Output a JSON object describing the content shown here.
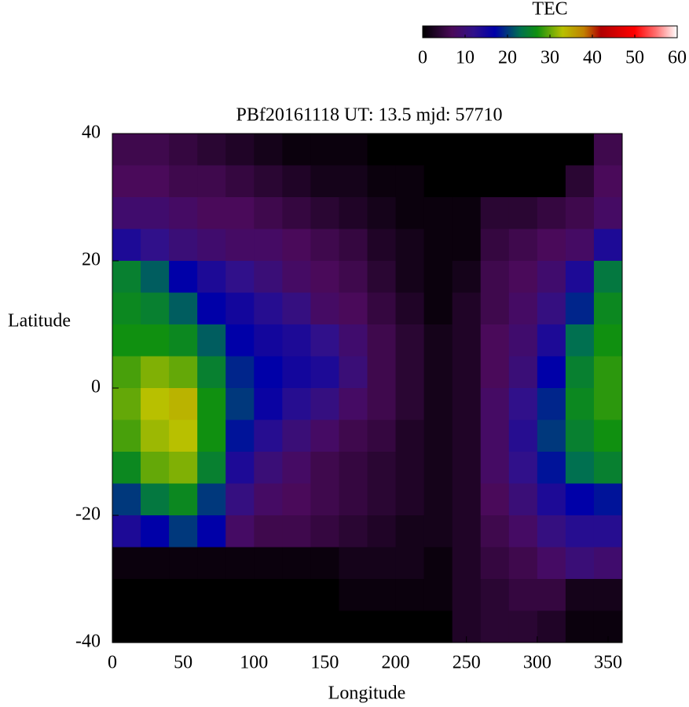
{
  "chart_data": {
    "type": "heatmap",
    "title": "PBf20161118  UT: 13.5  mjd: 57710",
    "xlabel": "Longitude",
    "ylabel": "Latitude",
    "x": [
      10,
      30,
      50,
      70,
      90,
      110,
      130,
      150,
      170,
      190,
      210,
      230,
      250,
      270,
      290,
      310,
      330,
      350
    ],
    "y": [
      37.5,
      32.5,
      27.5,
      22.5,
      17.5,
      12.5,
      7.5,
      2.5,
      -2.5,
      -7.5,
      -12.5,
      -17.5,
      -22.5,
      -27.5,
      -32.5,
      -37.5
    ],
    "z": [
      [
        6,
        6,
        5,
        4,
        3,
        2,
        1,
        1,
        1,
        0,
        0,
        0,
        0,
        0,
        0,
        0,
        0,
        6
      ],
      [
        7,
        7,
        6,
        6,
        5,
        4,
        3,
        2,
        2,
        1,
        1,
        0,
        0,
        0,
        0,
        0,
        4,
        7
      ],
      [
        9,
        9,
        8,
        7,
        7,
        6,
        5,
        4,
        3,
        2,
        1,
        1,
        1,
        4,
        4,
        5,
        6,
        8
      ],
      [
        14,
        12,
        10,
        9,
        8,
        8,
        7,
        6,
        5,
        3,
        2,
        1,
        1,
        5,
        6,
        7,
        8,
        14
      ],
      [
        25,
        22,
        17,
        14,
        12,
        10,
        8,
        7,
        6,
        4,
        2,
        1,
        2,
        6,
        7,
        9,
        14,
        24
      ],
      [
        26,
        25,
        22,
        17,
        15,
        13,
        11,
        8,
        7,
        5,
        3,
        1,
        3,
        6,
        8,
        11,
        19,
        26
      ],
      [
        27,
        27,
        26,
        22,
        17,
        15,
        14,
        12,
        9,
        6,
        4,
        2,
        3,
        7,
        9,
        14,
        23,
        27
      ],
      [
        29,
        31,
        30,
        25,
        19,
        17,
        15,
        14,
        10,
        6,
        4,
        2,
        3,
        7,
        10,
        17,
        25,
        28
      ],
      [
        30,
        33,
        34,
        27,
        20,
        16,
        13,
        11,
        8,
        6,
        4,
        2,
        3,
        8,
        12,
        19,
        26,
        28
      ],
      [
        29,
        32,
        33,
        27,
        18,
        13,
        10,
        8,
        6,
        5,
        3,
        2,
        3,
        8,
        13,
        20,
        25,
        27
      ],
      [
        26,
        30,
        31,
        25,
        14,
        10,
        8,
        6,
        5,
        4,
        3,
        2,
        3,
        8,
        12,
        18,
        23,
        25
      ],
      [
        20,
        24,
        26,
        20,
        11,
        8,
        7,
        6,
        5,
        4,
        3,
        2,
        3,
        7,
        10,
        14,
        17,
        18
      ],
      [
        14,
        17,
        20,
        17,
        8,
        6,
        6,
        5,
        4,
        3,
        2,
        2,
        3,
        6,
        8,
        11,
        13,
        13
      ],
      [
        1,
        1,
        1,
        1,
        1,
        1,
        1,
        1,
        2,
        2,
        2,
        1,
        3,
        5,
        6,
        8,
        10,
        9
      ],
      [
        0,
        0,
        0,
        0,
        0,
        0,
        0,
        0,
        1,
        1,
        1,
        1,
        3,
        4,
        5,
        5,
        2,
        2
      ],
      [
        0,
        0,
        0,
        0,
        0,
        0,
        0,
        0,
        0,
        0,
        0,
        0,
        3,
        4,
        4,
        3,
        1,
        1
      ]
    ],
    "xlim": [
      0,
      360
    ],
    "xticks": [
      0,
      50,
      100,
      150,
      200,
      250,
      300,
      350
    ],
    "ylim": [
      -40,
      40
    ],
    "yticks": [
      -40,
      -20,
      0,
      20,
      40
    ],
    "colorbar": {
      "title": "TEC",
      "lim": [
        0,
        60
      ],
      "ticks": [
        0,
        10,
        20,
        30,
        40,
        50,
        60
      ]
    },
    "colormap": [
      [
        0,
        "#000000"
      ],
      [
        7,
        "#4a0a5a"
      ],
      [
        12,
        "#30108a"
      ],
      [
        17,
        "#0000a8"
      ],
      [
        23,
        "#007050"
      ],
      [
        27,
        "#109010"
      ],
      [
        33,
        "#b8c000"
      ],
      [
        38,
        "#c08000"
      ],
      [
        42,
        "#b00000"
      ],
      [
        50,
        "#ff0000"
      ],
      [
        55,
        "#ff7070"
      ],
      [
        60,
        "#ffffff"
      ]
    ]
  }
}
